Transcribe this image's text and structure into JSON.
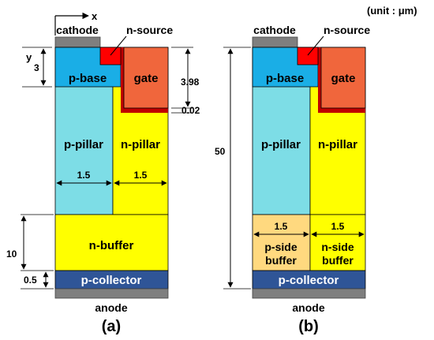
{
  "unit_label": "(unit : μm)",
  "colors": {
    "electrode": "#7f7f7f",
    "n_source": "#ff0000",
    "p_base": "#1aaee6",
    "gate": "#f0663c",
    "gate_oxide": "#c00000",
    "p_pillar": "#7ddde6",
    "n_pillar": "#ffff00",
    "n_buffer": "#ffff00",
    "p_side_buffer": "#ffd97f",
    "p_collector": "#2f5597"
  },
  "axis": {
    "x_label": "x",
    "y_label": "y"
  },
  "panel_a": {
    "caption": "(a)",
    "cathode": "cathode",
    "n_source": "n-source",
    "p_base": "p-base",
    "gate": "gate",
    "p_pillar": "p-pillar",
    "n_pillar": "n-pillar",
    "n_buffer": "n-buffer",
    "p_collector": "p-collector",
    "anode": "anode",
    "dim_base_depth": "3",
    "dim_gate_depth": "3.98",
    "dim_oxide": "0.02",
    "dim_p_pillar_width": "1.5",
    "dim_n_pillar_width": "1.5",
    "dim_buffer": "10",
    "dim_collector": "0.5"
  },
  "panel_b": {
    "caption": "(b)",
    "cathode": "cathode",
    "n_source": "n-source",
    "p_base": "p-base",
    "gate": "gate",
    "p_pillar": "p-pillar",
    "n_pillar": "n-pillar",
    "p_side_buffer_1": "p-side",
    "p_side_buffer_2": "buffer",
    "n_side_buffer_1": "n-side",
    "n_side_buffer_2": "buffer",
    "p_collector": "p-collector",
    "anode": "anode",
    "dim_total": "50",
    "dim_p_buffer_width": "1.5",
    "dim_n_buffer_width": "1.5"
  }
}
